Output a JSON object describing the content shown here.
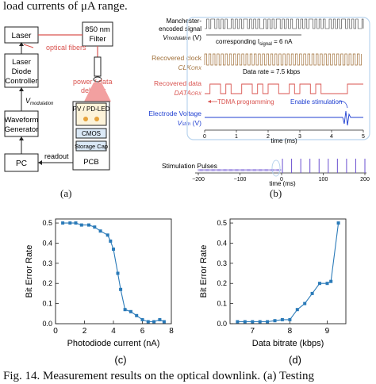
{
  "top_text": "load currents of μA range.",
  "bottom_text": "Fig. 14.    Measurement results on the optical downlink. (a) Testing",
  "panel_a": {
    "caption": "(a)",
    "laser": "Laser",
    "filter": "850 nm Filter",
    "optical_fibers": "optical fibers",
    "ldc": "Laser Diode Controller",
    "vmod": "V",
    "vmod_sub": "modulation",
    "power_data": "power / data delivery",
    "wfg": "Waveform Generator",
    "pv": "PV / PD-LED",
    "cmos": "CMOS",
    "storage": "Storage Cap",
    "readout": "readout",
    "pc": "PC",
    "pcb": "PCB"
  },
  "panel_b": {
    "caption": "(b)",
    "sig1_label": "Manchester-encoded signal",
    "sig1_v": "V",
    "sig1_v_sub": "modulation",
    "sig1_unit": "(V)",
    "corr": "corresponding I",
    "corr_sub": "signal",
    "corr_val": " = 6 nA",
    "sig2_label": "Recovered clock",
    "sig2_name": "CLK",
    "sig2_sub": "ORX",
    "data_rate": "Data rate = 7.5 kbps",
    "sig3_label": "Recovered data",
    "sig3_name": "DATA",
    "sig3_sub": "ORX",
    "tdma": "TDMA programming",
    "enable": "Enable stimulation",
    "sig4_label": "Electrode Voltage",
    "sig4_v": "V",
    "sig4_sub": "stim",
    "sig4_unit": "(V)",
    "time_label": "time (ms)",
    "stim_pulses": "Stimulation Pulses",
    "ticks_top": [
      "0",
      "1",
      "2",
      "3",
      "4",
      "5"
    ],
    "ticks_bottom": [
      "−200",
      "−100",
      "0",
      "100",
      "200"
    ],
    "time_label2": "time (ms)"
  },
  "chart_data": [
    {
      "type": "line",
      "caption": "(c)",
      "xlabel": "Photodiode current (nA)",
      "ylabel": "Bit Error Rate",
      "xlim": [
        0,
        8
      ],
      "ylim": [
        0,
        0.52
      ],
      "xticks": [
        0,
        2,
        4,
        6,
        8
      ],
      "yticks": [
        0,
        0.1,
        0.2,
        0.3,
        0.4,
        0.5
      ],
      "x": [
        0.5,
        1.0,
        1.4,
        1.8,
        2.3,
        2.7,
        3.1,
        3.6,
        3.8,
        4.0,
        4.3,
        4.5,
        4.8,
        5.2,
        5.6,
        6.0,
        6.4,
        6.8,
        7.2,
        7.5
      ],
      "y": [
        0.5,
        0.5,
        0.5,
        0.49,
        0.49,
        0.48,
        0.46,
        0.44,
        0.41,
        0.37,
        0.25,
        0.17,
        0.07,
        0.06,
        0.04,
        0.02,
        0.01,
        0.01,
        0.02,
        0.01
      ],
      "color": "#2a7ab8"
    },
    {
      "type": "line",
      "caption": "(d)",
      "xlabel": "Data bitrate (kbps)",
      "ylabel": "Bit Error Rate",
      "xlim": [
        6.4,
        9.5
      ],
      "ylim": [
        0,
        0.52
      ],
      "xticks": [
        7,
        8,
        9
      ],
      "yticks": [
        0,
        0.1,
        0.2,
        0.3,
        0.4,
        0.5
      ],
      "x": [
        6.6,
        6.8,
        7.0,
        7.2,
        7.4,
        7.6,
        7.8,
        8.0,
        8.2,
        8.4,
        8.6,
        8.8,
        9.0,
        9.1,
        9.3
      ],
      "y": [
        0.01,
        0.01,
        0.01,
        0.01,
        0.01,
        0.015,
        0.02,
        0.02,
        0.07,
        0.1,
        0.15,
        0.2,
        0.2,
        0.21,
        0.5
      ],
      "color": "#2a7ab8"
    }
  ]
}
